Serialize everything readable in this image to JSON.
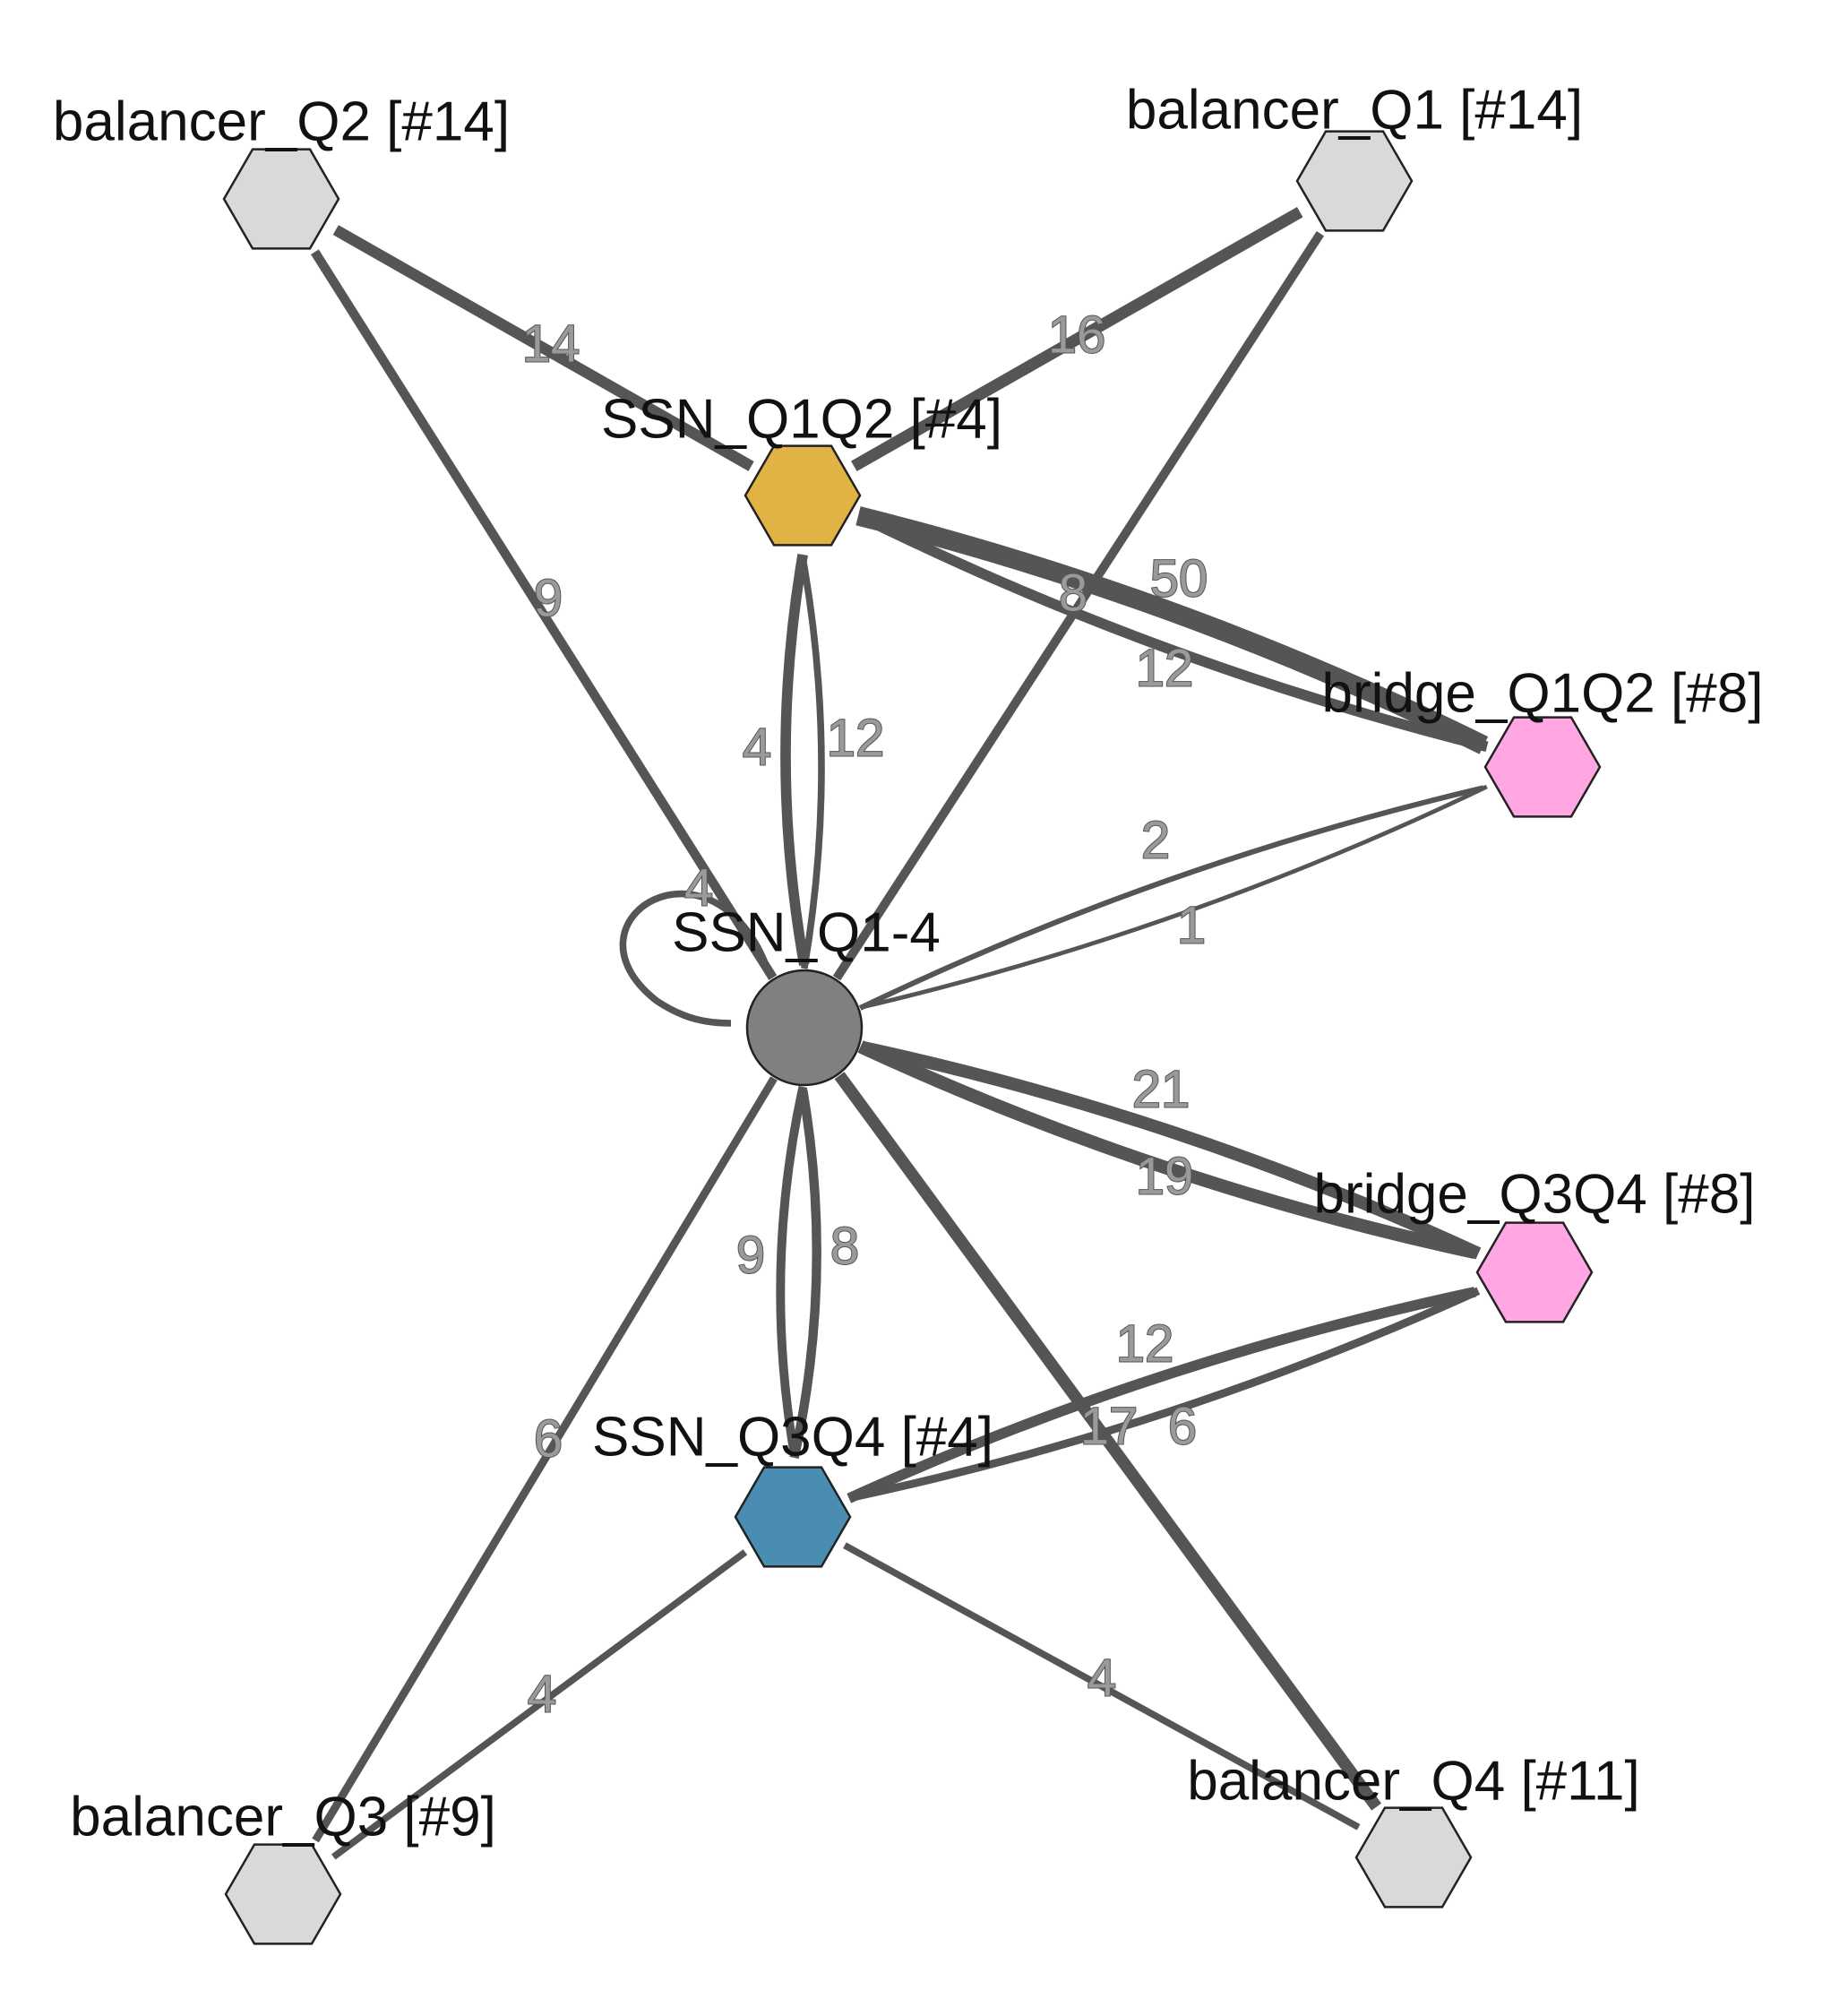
{
  "nodes": [
    {
      "id": "SSN_Q1-4",
      "label": "SSN_Q1-4",
      "shape": "circle",
      "color": "#808080"
    },
    {
      "id": "SSN_Q1Q2",
      "label": "SSN_Q1Q2 [#4]",
      "shape": "hexagon",
      "color": "#E1B244"
    },
    {
      "id": "SSN_Q3Q4",
      "label": "SSN_Q3Q4 [#4]",
      "shape": "hexagon",
      "color": "#4A8DB3"
    },
    {
      "id": "bridge_Q1Q2",
      "label": "bridge_Q1Q2 [#8]",
      "shape": "hexagon",
      "color": "#FFA6E3"
    },
    {
      "id": "bridge_Q3Q4",
      "label": "bridge_Q3Q4 [#8]",
      "shape": "hexagon",
      "color": "#FFA6E3"
    },
    {
      "id": "balancer_Q1",
      "label": "balancer_Q1 [#14]",
      "shape": "hexagon",
      "color": "#D9D9D9"
    },
    {
      "id": "balancer_Q2",
      "label": "balancer_Q2 [#14]",
      "shape": "hexagon",
      "color": "#D9D9D9"
    },
    {
      "id": "balancer_Q3",
      "label": "balancer_Q3 [#9]",
      "shape": "hexagon",
      "color": "#D9D9D9"
    },
    {
      "id": "balancer_Q4",
      "label": "balancer_Q4 [#11]",
      "shape": "hexagon",
      "color": "#D9D9D9"
    }
  ],
  "edges": [
    {
      "from": "SSN_Q1-4",
      "to": "SSN_Q1-4",
      "label": "4",
      "weight": 4
    },
    {
      "from": "SSN_Q1-4",
      "to": "SSN_Q1Q2",
      "label": "4",
      "weight": 4
    },
    {
      "from": "SSN_Q1Q2",
      "to": "SSN_Q1-4",
      "label": "12",
      "weight": 12
    },
    {
      "from": "SSN_Q1Q2",
      "to": "balancer_Q2",
      "label": "14",
      "weight": 14
    },
    {
      "from": "SSN_Q1Q2",
      "to": "balancer_Q1",
      "label": "16",
      "weight": 16
    },
    {
      "from": "SSN_Q1Q2",
      "to": "bridge_Q1Q2",
      "label": "50",
      "weight": 50
    },
    {
      "from": "bridge_Q1Q2",
      "to": "SSN_Q1Q2",
      "label": "12",
      "weight": 12
    },
    {
      "from": "SSN_Q1-4",
      "to": "balancer_Q2",
      "label": "9",
      "weight": 9
    },
    {
      "from": "SSN_Q1-4",
      "to": "balancer_Q1",
      "label": "8",
      "weight": 8
    },
    {
      "from": "SSN_Q1-4",
      "to": "bridge_Q1Q2",
      "label": "2",
      "weight": 2
    },
    {
      "from": "bridge_Q1Q2",
      "to": "SSN_Q1-4",
      "label": "1",
      "weight": 1
    },
    {
      "from": "SSN_Q1-4",
      "to": "bridge_Q3Q4",
      "label": "21",
      "weight": 21
    },
    {
      "from": "bridge_Q3Q4",
      "to": "SSN_Q1-4",
      "label": "19",
      "weight": 19
    },
    {
      "from": "SSN_Q3Q4",
      "to": "SSN_Q1-4",
      "label": "9",
      "weight": 9
    },
    {
      "from": "SSN_Q1-4",
      "to": "SSN_Q3Q4",
      "label": "8",
      "weight": 8
    },
    {
      "from": "SSN_Q3Q4",
      "to": "bridge_Q3Q4",
      "label": "12",
      "weight": 12
    },
    {
      "from": "bridge_Q3Q4",
      "to": "SSN_Q3Q4",
      "label": "6",
      "weight": 6
    },
    {
      "from": "SSN_Q1-4",
      "to": "balancer_Q3",
      "label": "6",
      "weight": 6
    },
    {
      "from": "SSN_Q1-4",
      "to": "balancer_Q4",
      "label": "17",
      "weight": 17
    },
    {
      "from": "SSN_Q3Q4",
      "to": "balancer_Q3",
      "label": "4",
      "weight": 4
    },
    {
      "from": "SSN_Q3Q4",
      "to": "balancer_Q4",
      "label": "4",
      "weight": 4
    }
  ]
}
